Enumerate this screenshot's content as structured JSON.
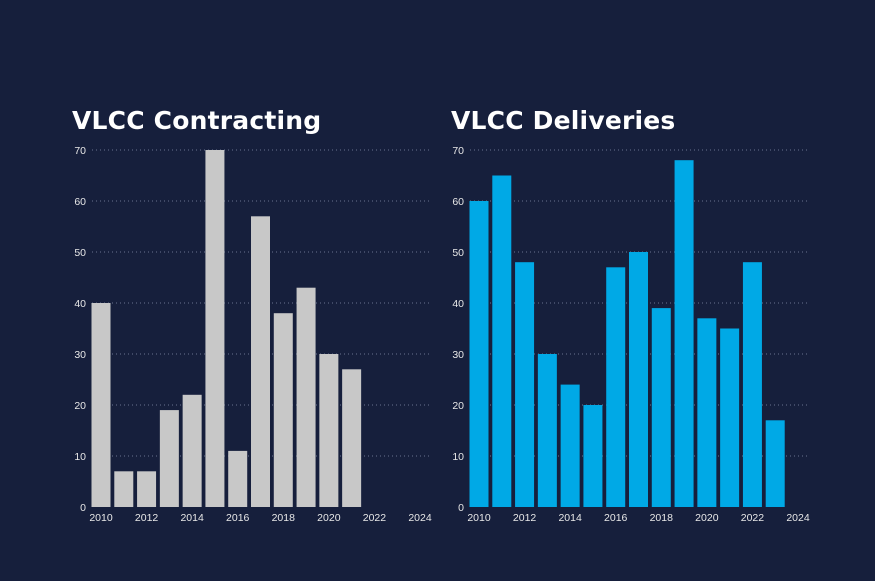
{
  "chart_data": [
    {
      "type": "bar",
      "title": "VLCC Contracting",
      "x": [
        2010,
        2011,
        2012,
        2013,
        2014,
        2015,
        2016,
        2017,
        2018,
        2019,
        2020,
        2021
      ],
      "values": [
        40,
        7,
        7,
        19,
        22,
        70,
        11,
        57,
        38,
        43,
        30,
        27
      ],
      "xlim": [
        2010,
        2024
      ],
      "x_ticks": [
        "2010",
        "2012",
        "2014",
        "2016",
        "2018",
        "2020",
        "2022",
        "2024"
      ],
      "ylim": [
        0,
        70
      ],
      "y_ticks": [
        "0",
        "10",
        "20",
        "30",
        "40",
        "50",
        "60",
        "70"
      ],
      "color": "#c8c8c8",
      "grid": true
    },
    {
      "type": "bar",
      "title": "VLCC Deliveries",
      "x": [
        2010,
        2011,
        2012,
        2013,
        2014,
        2015,
        2016,
        2017,
        2018,
        2019,
        2020,
        2021,
        2022,
        2023
      ],
      "values": [
        60,
        65,
        48,
        30,
        24,
        20,
        47,
        50,
        39,
        68,
        37,
        35,
        48,
        17
      ],
      "xlim": [
        2010,
        2024
      ],
      "x_ticks": [
        "2010",
        "2012",
        "2014",
        "2016",
        "2018",
        "2020",
        "2022",
        "2024"
      ],
      "ylim": [
        0,
        70
      ],
      "y_ticks": [
        "0",
        "10",
        "20",
        "30",
        "40",
        "50",
        "60",
        "70"
      ],
      "color": "#00a9e6",
      "grid": true
    }
  ]
}
